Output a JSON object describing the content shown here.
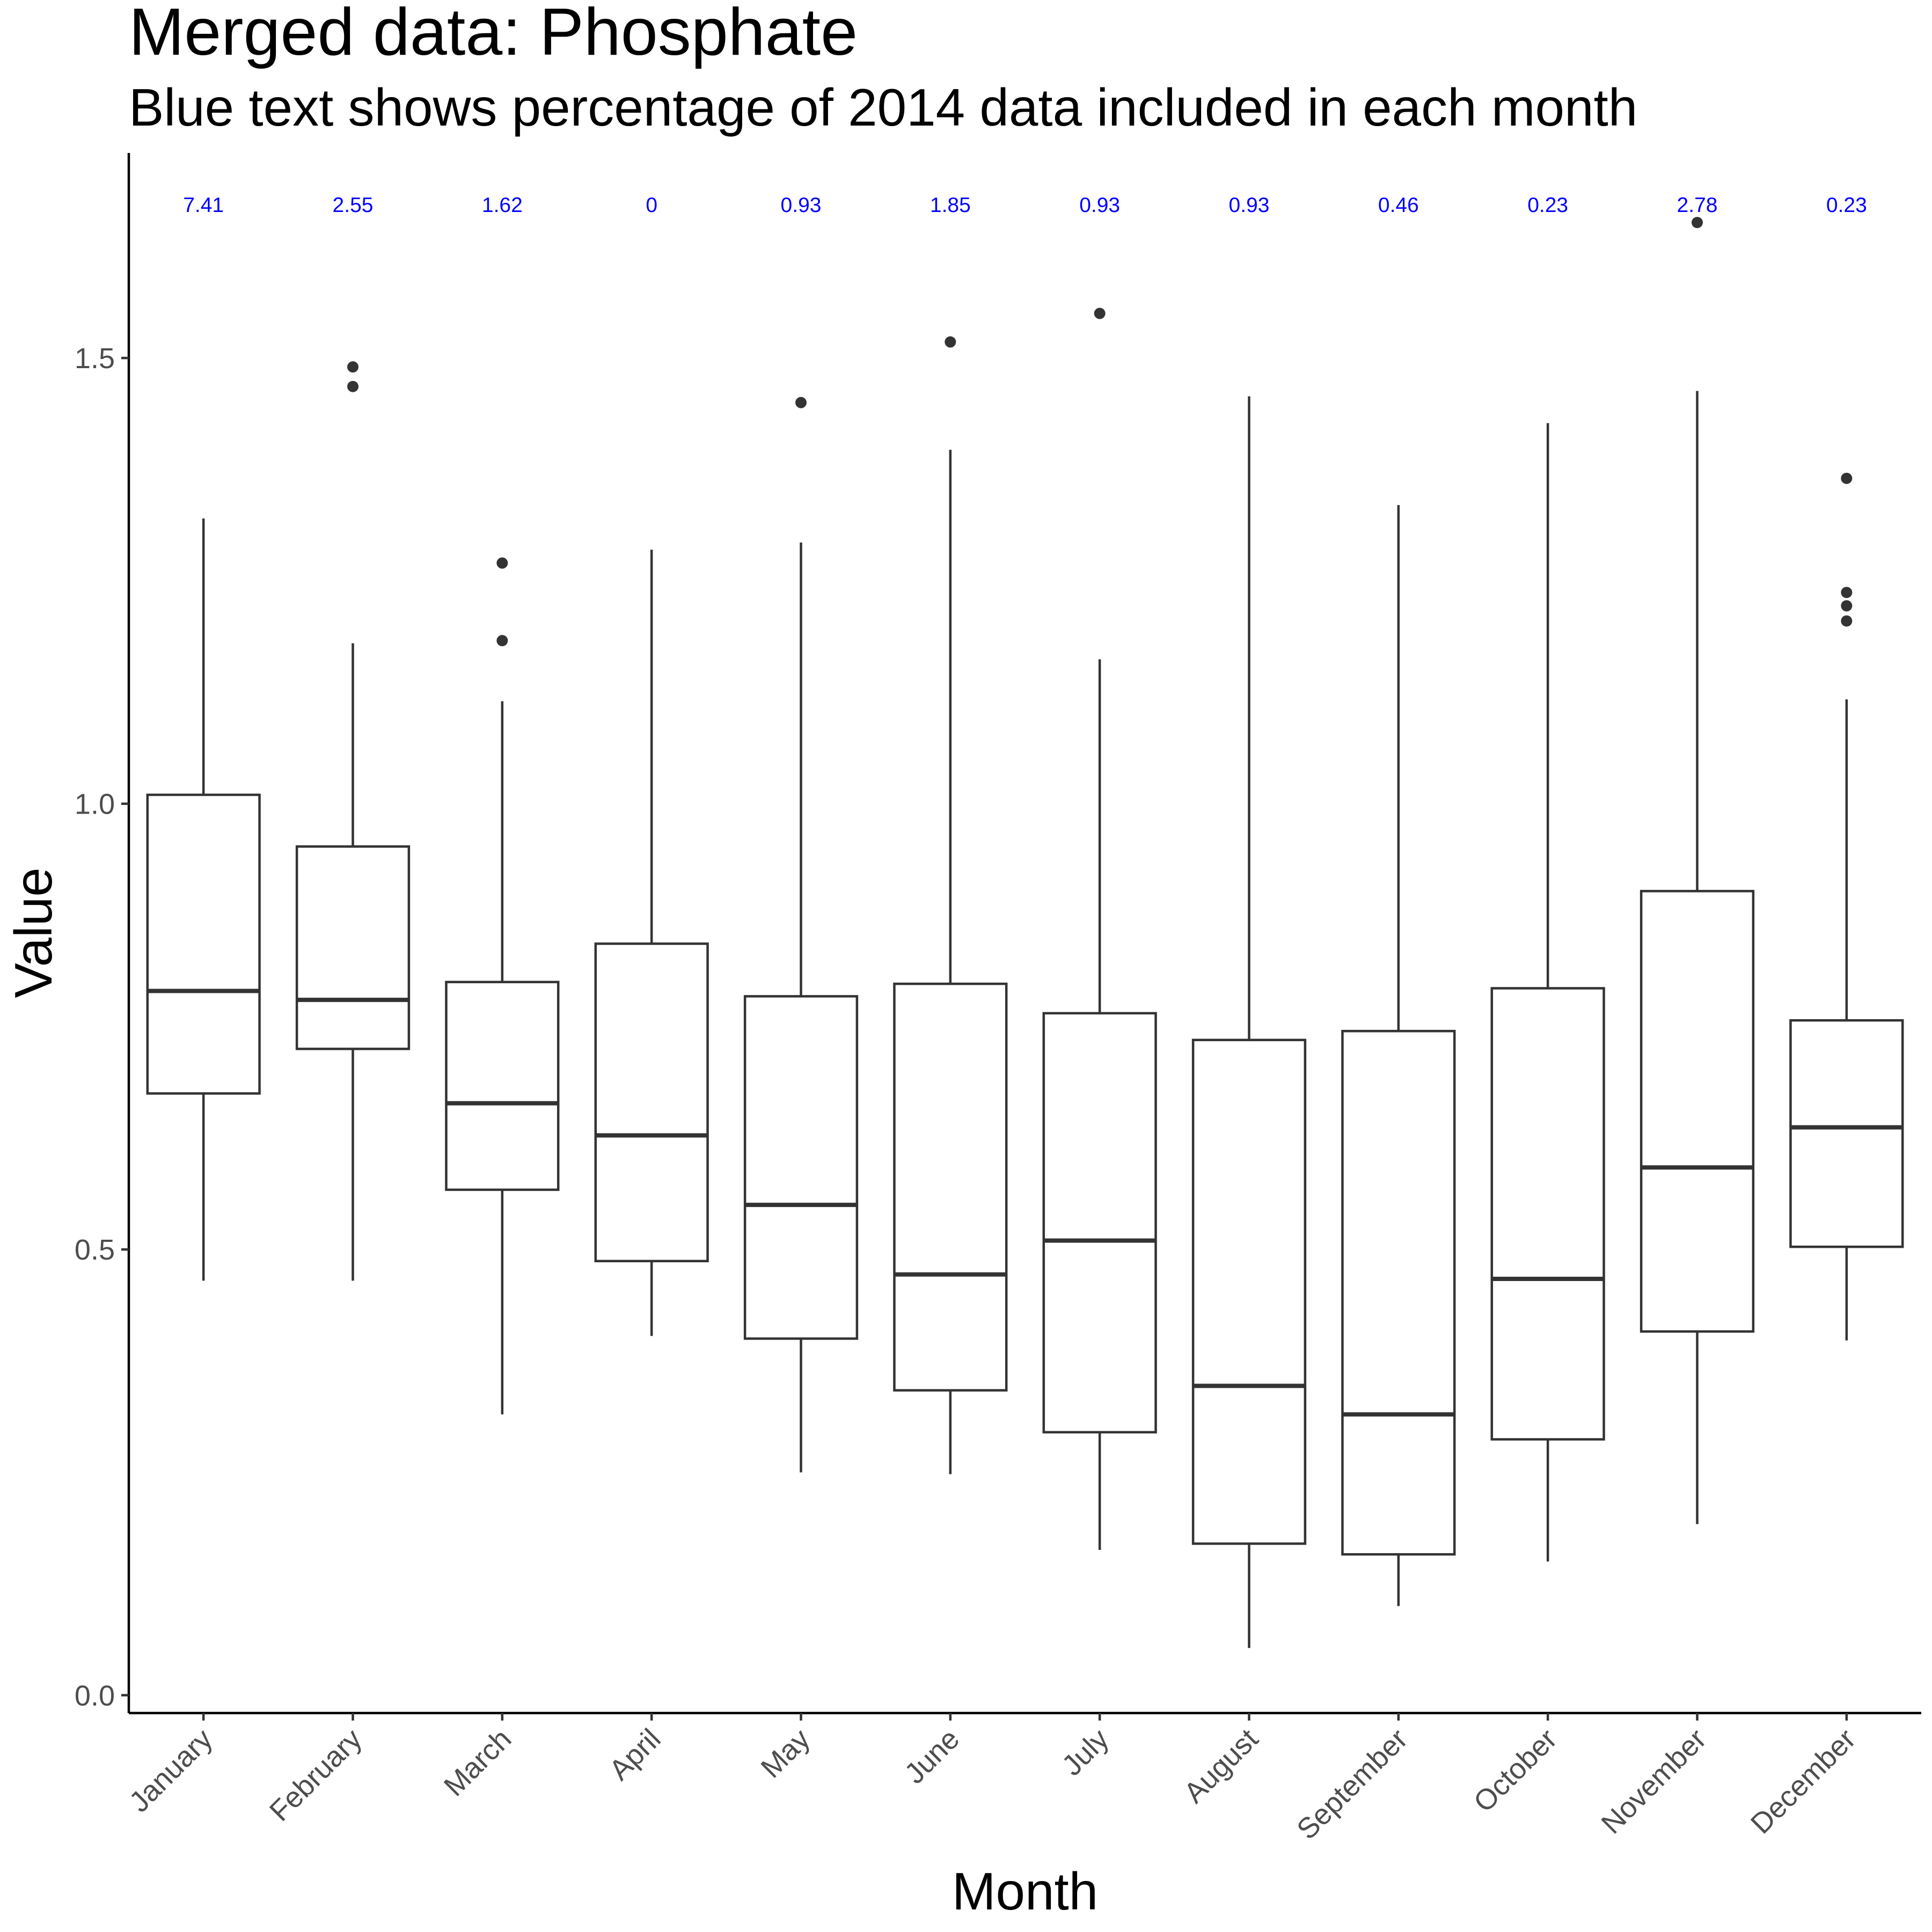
{
  "chart_data": {
    "type": "box",
    "title": "Merged data: Phosphate",
    "subtitle": "Blue text shows percentage of 2014 data included in each month",
    "xlabel": "Month",
    "ylabel": "Value",
    "ylim": [
      -0.02,
      1.73
    ],
    "yticks": [
      0.0,
      0.5,
      1.0,
      1.5
    ],
    "ytick_labels": [
      "0.0",
      "0.5",
      "1.0",
      "1.5"
    ],
    "grid": false,
    "annotation_color": "#0000ff",
    "box_color": "#333333",
    "categories": [
      "January",
      "February",
      "March",
      "April",
      "May",
      "June",
      "July",
      "August",
      "September",
      "October",
      "November",
      "December"
    ],
    "boxes": [
      {
        "month": "January",
        "whisker_low": 0.465,
        "q1": 0.675,
        "median": 0.79,
        "q3": 1.01,
        "whisker_high": 1.32,
        "outliers": [],
        "pct_label": "7.41"
      },
      {
        "month": "February",
        "whisker_low": 0.465,
        "q1": 0.725,
        "median": 0.78,
        "q3": 0.952,
        "whisker_high": 1.18,
        "outliers": [
          1.49,
          1.468
        ],
        "pct_label": "2.55"
      },
      {
        "month": "March",
        "whisker_low": 0.315,
        "q1": 0.567,
        "median": 0.664,
        "q3": 0.8,
        "whisker_high": 1.115,
        "outliers": [
          1.27,
          1.183
        ],
        "pct_label": "1.62"
      },
      {
        "month": "April",
        "whisker_low": 0.403,
        "q1": 0.487,
        "median": 0.628,
        "q3": 0.843,
        "whisker_high": 1.285,
        "outliers": [],
        "pct_label": "0"
      },
      {
        "month": "May",
        "whisker_low": 0.25,
        "q1": 0.4,
        "median": 0.55,
        "q3": 0.784,
        "whisker_high": 1.293,
        "outliers": [
          1.45
        ],
        "pct_label": "0.93"
      },
      {
        "month": "June",
        "whisker_low": 0.248,
        "q1": 0.342,
        "median": 0.472,
        "q3": 0.798,
        "whisker_high": 1.397,
        "outliers": [
          1.518
        ],
        "pct_label": "1.85"
      },
      {
        "month": "July",
        "whisker_low": 0.163,
        "q1": 0.295,
        "median": 0.51,
        "q3": 0.765,
        "whisker_high": 1.162,
        "outliers": [
          1.55
        ],
        "pct_label": "0.93"
      },
      {
        "month": "August",
        "whisker_low": 0.053,
        "q1": 0.17,
        "median": 0.347,
        "q3": 0.735,
        "whisker_high": 1.457,
        "outliers": [],
        "pct_label": "0.93"
      },
      {
        "month": "September",
        "whisker_low": 0.1,
        "q1": 0.158,
        "median": 0.315,
        "q3": 0.745,
        "whisker_high": 1.335,
        "outliers": [],
        "pct_label": "0.46"
      },
      {
        "month": "October",
        "whisker_low": 0.15,
        "q1": 0.287,
        "median": 0.467,
        "q3": 0.793,
        "whisker_high": 1.427,
        "outliers": [],
        "pct_label": "0.23"
      },
      {
        "month": "November",
        "whisker_low": 0.192,
        "q1": 0.408,
        "median": 0.592,
        "q3": 0.902,
        "whisker_high": 1.463,
        "outliers": [
          1.652
        ],
        "pct_label": "2.78"
      },
      {
        "month": "December",
        "whisker_low": 0.398,
        "q1": 0.503,
        "median": 0.637,
        "q3": 0.757,
        "whisker_high": 1.117,
        "outliers": [
          1.365,
          1.237,
          1.222,
          1.205
        ],
        "pct_label": "0.23"
      }
    ]
  }
}
